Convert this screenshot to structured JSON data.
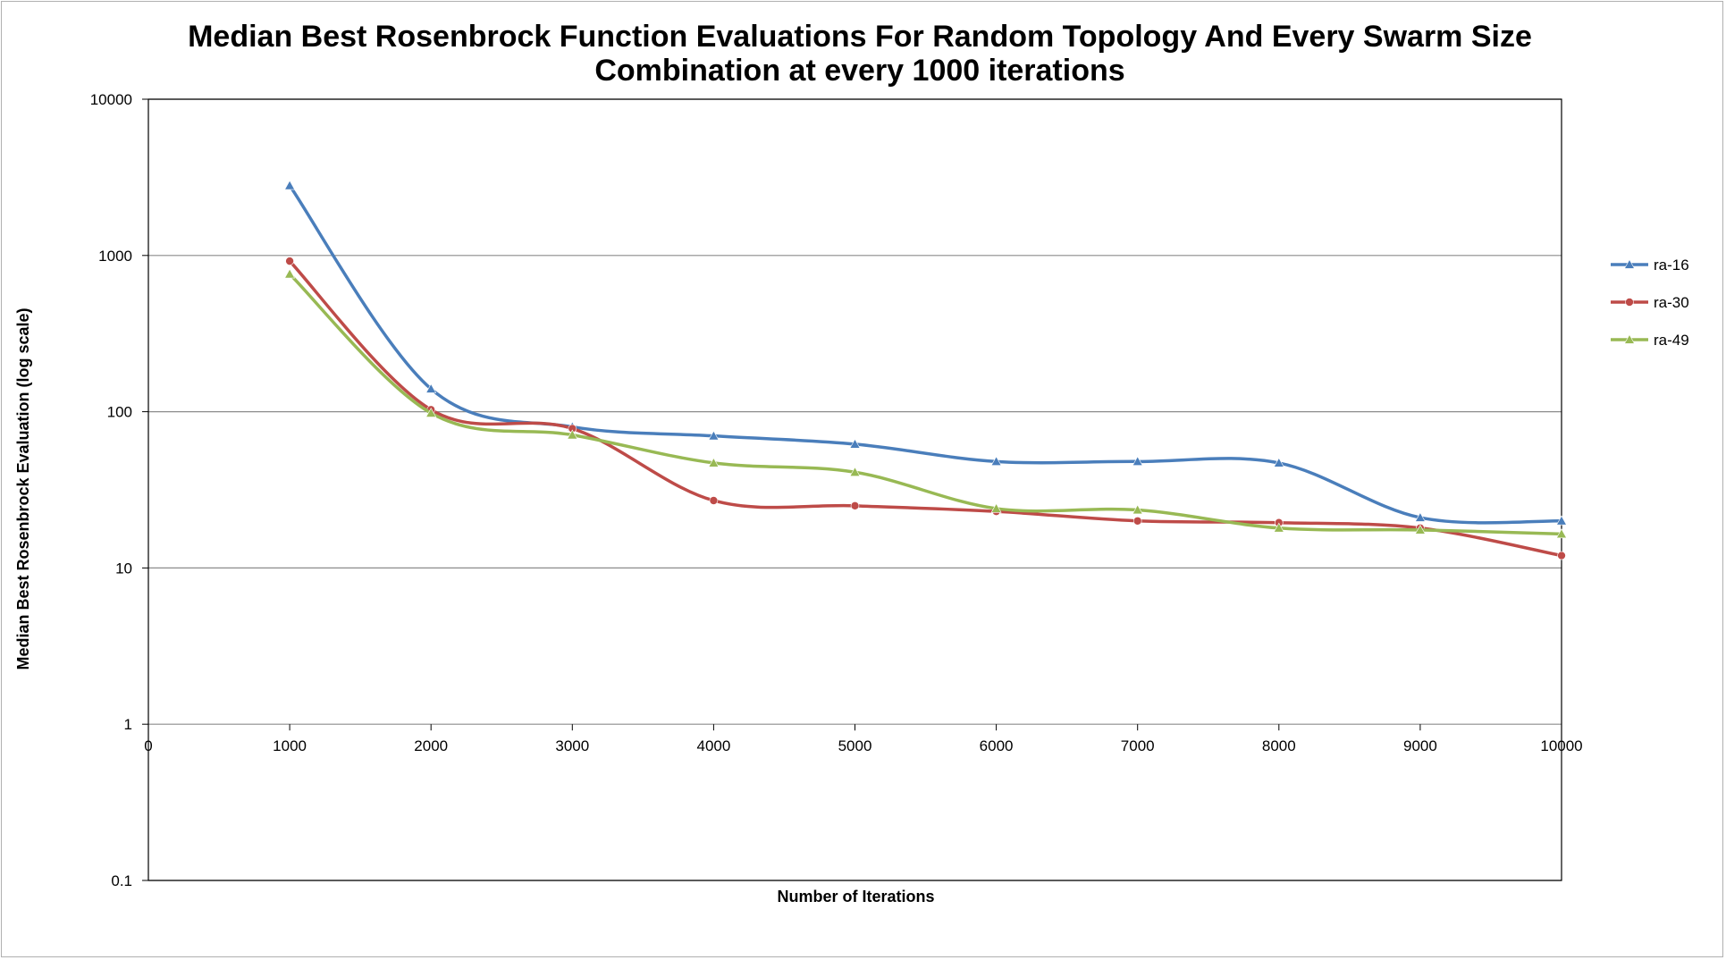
{
  "chart_data": {
    "type": "line",
    "title_line1": "Median Best Rosenbrock Function Evaluations For Random Topology And Every Swarm Size",
    "title_line2": "Combination at every 1000 iterations",
    "xlabel": "Number of Iterations",
    "ylabel": "Median Best Rosenbrock Evaluation (log scale)",
    "y_scale": "log",
    "xlim": [
      0,
      10000
    ],
    "ylim": [
      0.1,
      10000
    ],
    "x_ticks": [
      0,
      1000,
      2000,
      3000,
      4000,
      5000,
      6000,
      7000,
      8000,
      9000,
      10000
    ],
    "x_tick_labels": [
      "0",
      "1000",
      "2000",
      "3000",
      "4000",
      "5000",
      "6000",
      "7000",
      "8000",
      "9000",
      "10000"
    ],
    "y_ticks": [
      0.1,
      1,
      10,
      100,
      1000,
      10000
    ],
    "y_tick_labels": [
      "0.1",
      "1",
      "10",
      "100",
      "1000",
      "10000"
    ],
    "grid": "horizontal major lines",
    "legend_position": "right",
    "x": [
      1000,
      2000,
      3000,
      4000,
      5000,
      6000,
      7000,
      8000,
      9000,
      10000
    ],
    "series": [
      {
        "name": "ra-16",
        "color": "#4a7ebb",
        "marker": "triangle",
        "values": [
          2800,
          140,
          80,
          70,
          62,
          48,
          48,
          47,
          21,
          20
        ]
      },
      {
        "name": "ra-30",
        "color": "#be4b48",
        "marker": "circle",
        "values": [
          920,
          103,
          78,
          27,
          25,
          23,
          20,
          19.5,
          18,
          12
        ]
      },
      {
        "name": "ra-49",
        "color": "#98b954",
        "marker": "triangle",
        "values": [
          760,
          98,
          71,
          47,
          41,
          24,
          23.5,
          18,
          17.5,
          16.5
        ]
      }
    ]
  }
}
